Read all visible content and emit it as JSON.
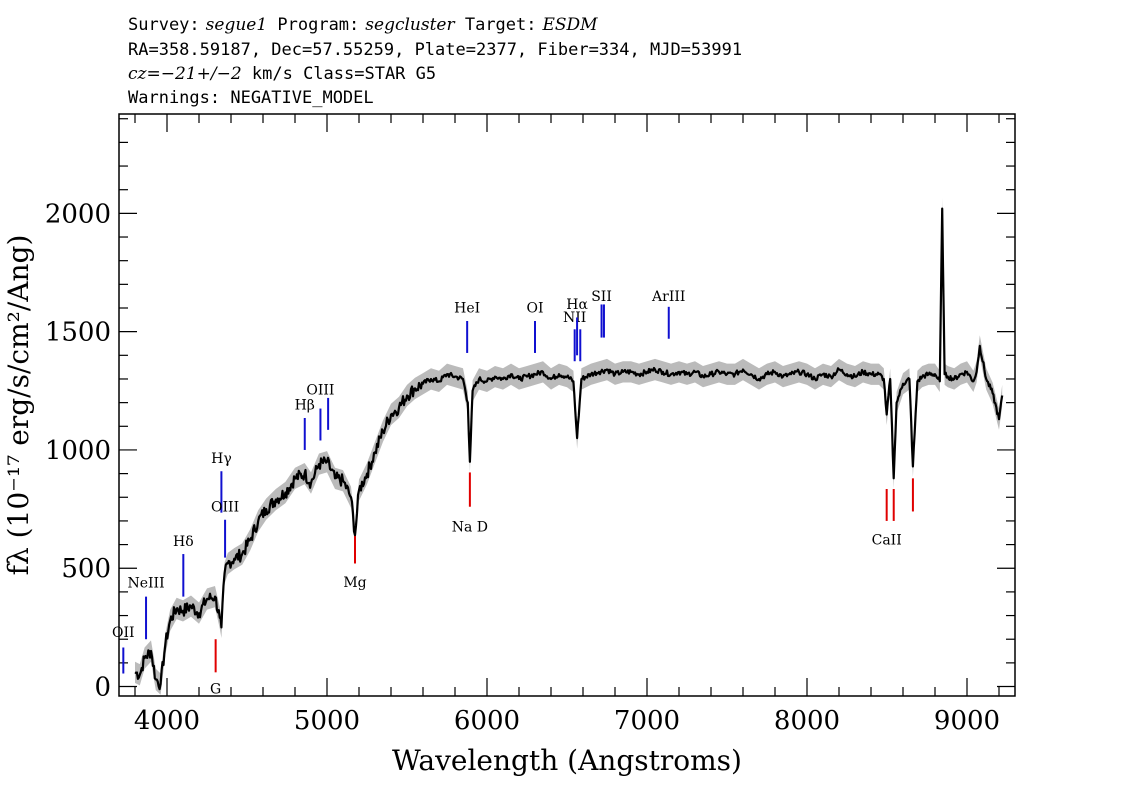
{
  "header": {
    "line1": {
      "survey_label": "Survey:",
      "survey": "segue1",
      "program_label": " Program:",
      "program": "segcluster",
      "target_label": " Target:",
      "target": "ESDM"
    },
    "line2": "RA=358.59187, Dec=57.55259, Plate=2377, Fiber=334, MJD=53991",
    "line3": {
      "cz_label": "cz=",
      "cz": "−21+/−2",
      "rest": " km/s Class=STAR G5"
    },
    "line4": "Warnings: NEGATIVE_MODEL"
  },
  "chart_data": {
    "type": "line",
    "xlabel": "Wavelength (Angstroms)",
    "ylabel": "fλ (10⁻¹⁷ erg/s/cm²/Ang)",
    "xlim": [
      3700,
      9300
    ],
    "ylim": [
      -40,
      2420
    ],
    "xticks": [
      "4000",
      "5000",
      "6000",
      "7000",
      "8000",
      "9000"
    ],
    "yticks": [
      "0",
      "500",
      "1000",
      "1500",
      "2000"
    ],
    "series": [
      {
        "name": "flux",
        "color": "#000000",
        "error_color": "#bbbbbb",
        "x": [
          3800,
          3830,
          3860,
          3900,
          3930,
          3960,
          3990,
          4020,
          4060,
          4100,
          4150,
          4200,
          4250,
          4300,
          4330,
          4340,
          4360,
          4380,
          4420,
          4470,
          4520,
          4570,
          4620,
          4680,
          4740,
          4800,
          4860,
          4900,
          4950,
          5000,
          5050,
          5100,
          5150,
          5175,
          5200,
          5250,
          5300,
          5350,
          5400,
          5450,
          5500,
          5550,
          5600,
          5650,
          5700,
          5750,
          5800,
          5850,
          5880,
          5893,
          5910,
          5950,
          6000,
          6050,
          6100,
          6150,
          6200,
          6250,
          6300,
          6350,
          6400,
          6450,
          6500,
          6540,
          6563,
          6590,
          6650,
          6700,
          6750,
          6800,
          6850,
          6900,
          6950,
          7000,
          7050,
          7100,
          7150,
          7200,
          7250,
          7300,
          7350,
          7400,
          7450,
          7500,
          7550,
          7600,
          7650,
          7700,
          7750,
          7800,
          7850,
          7900,
          7950,
          8000,
          8050,
          8100,
          8150,
          8200,
          8250,
          8300,
          8350,
          8400,
          8450,
          8480,
          8498,
          8520,
          8542,
          8560,
          8600,
          8640,
          8662,
          8690,
          8720,
          8760,
          8800,
          8830,
          8845,
          8860,
          8880,
          8920,
          8960,
          9000,
          9040,
          9060,
          9080,
          9120,
          9160,
          9200,
          9220
        ],
        "y": [
          60,
          50,
          120,
          150,
          30,
          10,
          180,
          280,
          330,
          320,
          340,
          310,
          370,
          380,
          290,
          250,
          480,
          520,
          540,
          560,
          620,
          700,
          750,
          790,
          820,
          880,
          900,
          860,
          940,
          950,
          880,
          870,
          800,
          640,
          830,
          900,
          990,
          1080,
          1150,
          1180,
          1230,
          1260,
          1280,
          1300,
          1290,
          1320,
          1310,
          1300,
          1200,
          950,
          1250,
          1300,
          1290,
          1310,
          1300,
          1320,
          1300,
          1310,
          1320,
          1330,
          1300,
          1320,
          1310,
          1290,
          1050,
          1300,
          1320,
          1330,
          1340,
          1320,
          1330,
          1330,
          1320,
          1330,
          1340,
          1330,
          1320,
          1330,
          1320,
          1330,
          1310,
          1320,
          1330,
          1320,
          1320,
          1340,
          1320,
          1300,
          1320,
          1330,
          1310,
          1320,
          1330,
          1320,
          1300,
          1320,
          1310,
          1340,
          1320,
          1310,
          1330,
          1320,
          1320,
          1300,
          1150,
          1300,
          880,
          1200,
          1280,
          1300,
          930,
          1290,
          1310,
          1320,
          1320,
          1290,
          2020,
          1320,
          1310,
          1300,
          1320,
          1330,
          1290,
          1330,
          1440,
          1300,
          1240,
          1130,
          1230
        ]
      }
    ],
    "line_markers": [
      {
        "label": "OII",
        "x": 3727,
        "color": "blue",
        "y1": 55,
        "y2": 165,
        "ly": 210
      },
      {
        "label": "NeIII",
        "x": 3869,
        "color": "blue",
        "y1": 200,
        "y2": 380,
        "ly": 418
      },
      {
        "label": "Hδ",
        "x": 4102,
        "color": "blue",
        "y1": 380,
        "y2": 560,
        "ly": 595
      },
      {
        "label": "Hγ",
        "x": 4340,
        "color": "blue",
        "y1": 735,
        "y2": 910,
        "ly": 945
      },
      {
        "label": "OIII",
        "x": 4363,
        "color": "blue",
        "y1": 545,
        "y2": 705,
        "ly": 740
      },
      {
        "label": "Hβ",
        "x": 4861,
        "color": "blue",
        "y1": 1000,
        "y2": 1135,
        "ly": 1170
      },
      {
        "label": "OIII",
        "x": 4959,
        "color": "blue",
        "y1": 1040,
        "y2": 1175,
        "ly": 1235
      },
      {
        "label": "OIII",
        "x": 5007,
        "color": "blue",
        "y1": 1085,
        "y2": 1220,
        "ly": 1235
      },
      {
        "label": "HeI",
        "x": 5876,
        "color": "blue",
        "y1": 1410,
        "y2": 1545,
        "ly": 1580
      },
      {
        "label": "OI",
        "x": 6300,
        "color": "blue",
        "y1": 1410,
        "y2": 1545,
        "ly": 1580
      },
      {
        "label": "NII",
        "x": 6548,
        "color": "blue",
        "y1": 1375,
        "y2": 1510,
        "ly": 1540
      },
      {
        "label": "Hα",
        "x": 6563,
        "color": "blue",
        "y1": 1400,
        "y2": 1560,
        "ly": 1595
      },
      {
        "label": "NII",
        "x": 6583,
        "color": "blue",
        "y1": 1375,
        "y2": 1510,
        "ly": 1540
      },
      {
        "label": "SII",
        "x": 6716,
        "color": "blue",
        "y1": 1475,
        "y2": 1615,
        "ly": 1630
      },
      {
        "label": "SII",
        "x": 6731,
        "color": "blue",
        "y1": 1475,
        "y2": 1615,
        "ly": 1630
      },
      {
        "label": "ArIII",
        "x": 7136,
        "color": "blue",
        "y1": 1470,
        "y2": 1605,
        "ly": 1630
      },
      {
        "label": "G",
        "x": 4304,
        "color": "red",
        "y1": 60,
        "y2": 200,
        "ly": -30
      },
      {
        "label": "Mg",
        "x": 5175,
        "color": "red",
        "y1": 520,
        "y2": 660,
        "ly": 420
      },
      {
        "label": "Na D",
        "x": 5893,
        "color": "red",
        "y1": 760,
        "y2": 905,
        "ly": 655
      },
      {
        "label": "CaII",
        "x": 8498,
        "color": "red",
        "y1": 700,
        "y2": 835,
        "ly": 600
      },
      {
        "label": "CaII",
        "x": 8542,
        "color": "red",
        "y1": 700,
        "y2": 835,
        "ly": 600
      },
      {
        "label": "CaII",
        "x": 8662,
        "color": "red",
        "y1": 740,
        "y2": 880,
        "ly": 600
      }
    ]
  }
}
